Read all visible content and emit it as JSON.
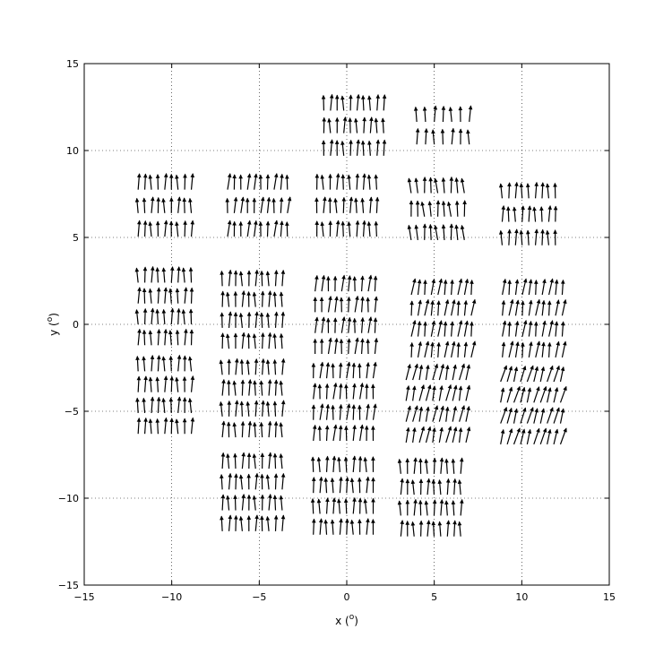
{
  "chart_data": {
    "type": "quiver",
    "title": "",
    "xlabel": {
      "main": "x (",
      "sup": "o",
      "end": ")"
    },
    "ylabel": {
      "main": "y (",
      "sup": "o",
      "end": ")"
    },
    "xlim": [
      -15,
      15
    ],
    "ylim": [
      -15,
      15
    ],
    "xticks": [
      -15,
      -10,
      -5,
      0,
      5,
      10,
      15
    ],
    "yticks": [
      -15,
      -10,
      -5,
      0,
      5,
      10,
      15
    ],
    "xtick_labels": [
      "−15",
      "−10",
      "−5",
      "0",
      "5",
      "10",
      "15"
    ],
    "ytick_labels": [
      "−15",
      "−10",
      "−5",
      "0",
      "5",
      "10",
      "15"
    ],
    "grid": "dotted",
    "arrow_color": "#000000",
    "groups": [
      {
        "center": [
          -10.4,
          6.4
        ],
        "nx": 9,
        "ny": 3,
        "dx": 0.38,
        "dy": 1.35,
        "u": 0.0,
        "v": 0.7
      },
      {
        "center": [
          -5.1,
          6.4
        ],
        "nx": 10,
        "ny": 3,
        "dx": 0.38,
        "dy": 1.35,
        "u": 0.05,
        "v": 0.7
      },
      {
        "center": [
          -0.0,
          6.4
        ],
        "nx": 10,
        "ny": 3,
        "dx": 0.38,
        "dy": 1.35,
        "u": 0.0,
        "v": 0.7
      },
      {
        "center": [
          5.2,
          6.2
        ],
        "nx": 9,
        "ny": 3,
        "dx": 0.38,
        "dy": 1.35,
        "u": -0.05,
        "v": 0.7
      },
      {
        "center": [
          10.4,
          5.9
        ],
        "nx": 9,
        "ny": 3,
        "dx": 0.38,
        "dy": 1.35,
        "u": 0.0,
        "v": 0.7
      },
      {
        "center": [
          0.4,
          11.0
        ],
        "nx": 10,
        "ny": 3,
        "dx": 0.38,
        "dy": 1.3,
        "u": 0.0,
        "v": 0.7
      },
      {
        "center": [
          5.5,
          11.0
        ],
        "nx": 7,
        "ny": 2,
        "dx": 0.5,
        "dy": 1.3,
        "u": 0.0,
        "v": 0.7
      },
      {
        "center": [
          -10.4,
          0.6
        ],
        "nx": 9,
        "ny": 4,
        "dx": 0.38,
        "dy": 1.2,
        "u": 0.0,
        "v": 0.7
      },
      {
        "center": [
          -5.4,
          0.4
        ],
        "nx": 10,
        "ny": 4,
        "dx": 0.38,
        "dy": 1.2,
        "u": 0.0,
        "v": 0.7
      },
      {
        "center": [
          -0.1,
          0.1
        ],
        "nx": 10,
        "ny": 4,
        "dx": 0.38,
        "dy": 1.2,
        "u": 0.05,
        "v": 0.7
      },
      {
        "center": [
          5.4,
          -0.1
        ],
        "nx": 10,
        "ny": 4,
        "dx": 0.38,
        "dy": 1.2,
        "u": 0.1,
        "v": 0.7
      },
      {
        "center": [
          10.6,
          -0.1
        ],
        "nx": 10,
        "ny": 4,
        "dx": 0.38,
        "dy": 1.2,
        "u": 0.1,
        "v": 0.7
      },
      {
        "center": [
          -10.4,
          -4.5
        ],
        "nx": 9,
        "ny": 4,
        "dx": 0.38,
        "dy": 1.2,
        "u": 0.0,
        "v": 0.7
      },
      {
        "center": [
          -5.4,
          -4.7
        ],
        "nx": 10,
        "ny": 4,
        "dx": 0.38,
        "dy": 1.2,
        "u": 0.0,
        "v": 0.7
      },
      {
        "center": [
          -0.2,
          -4.9
        ],
        "nx": 10,
        "ny": 4,
        "dx": 0.38,
        "dy": 1.2,
        "u": 0.05,
        "v": 0.7
      },
      {
        "center": [
          5.1,
          -5.0
        ],
        "nx": 10,
        "ny": 4,
        "dx": 0.38,
        "dy": 1.2,
        "u": 0.15,
        "v": 0.7
      },
      {
        "center": [
          10.5,
          -5.1
        ],
        "nx": 10,
        "ny": 4,
        "dx": 0.38,
        "dy": 1.2,
        "u": 0.2,
        "v": 0.7
      },
      {
        "center": [
          -5.4,
          -10.1
        ],
        "nx": 10,
        "ny": 4,
        "dx": 0.38,
        "dy": 1.2,
        "u": 0.0,
        "v": 0.7
      },
      {
        "center": [
          -0.2,
          -10.3
        ],
        "nx": 10,
        "ny": 4,
        "dx": 0.38,
        "dy": 1.2,
        "u": 0.0,
        "v": 0.7
      },
      {
        "center": [
          4.8,
          -10.4
        ],
        "nx": 10,
        "ny": 4,
        "dx": 0.38,
        "dy": 1.2,
        "u": 0.0,
        "v": 0.7
      }
    ]
  }
}
